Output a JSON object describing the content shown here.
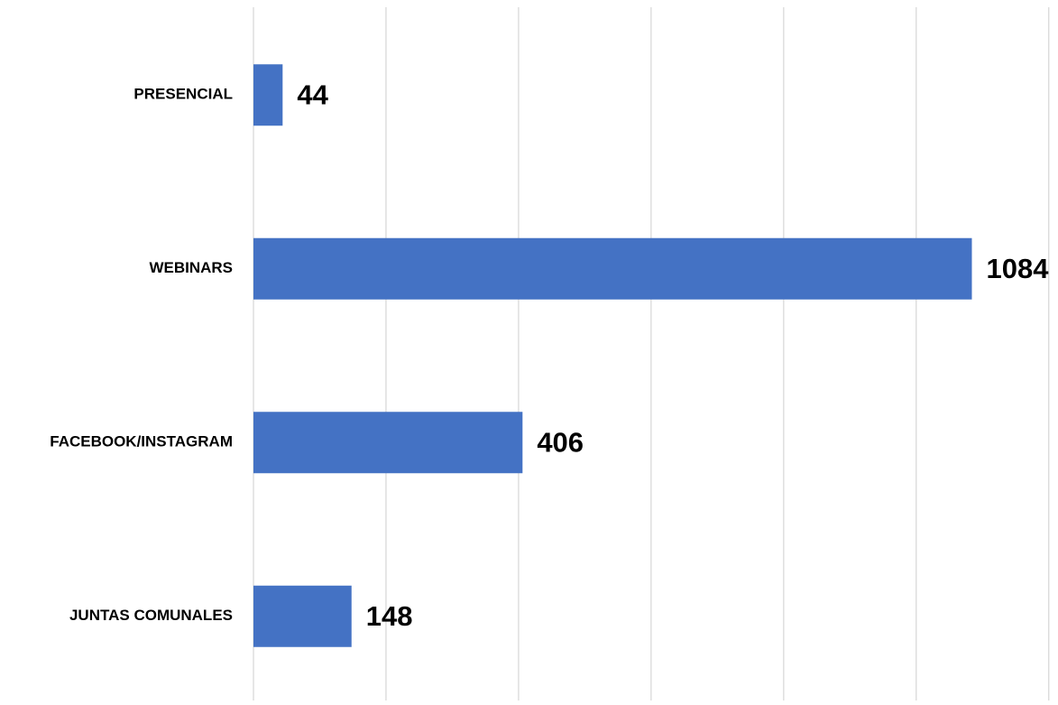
{
  "chart_data": {
    "type": "bar",
    "orientation": "horizontal",
    "title": "",
    "xlabel": "",
    "ylabel": "",
    "categories": [
      "PRESENCIAL",
      "WEBINARS",
      "FACEBOOK/INSTAGRAM",
      "JUNTAS COMUNALES"
    ],
    "values": [
      44,
      1084,
      406,
      148
    ],
    "data_labels": [
      "44",
      "1084",
      "406",
      "148"
    ],
    "xlim": [
      0,
      1200
    ],
    "grid": true,
    "legend": "none",
    "value_axis_labels_shown": false,
    "colors": {
      "bar": "#4472C4",
      "grid": "#D9D9D9",
      "text": "#000000"
    }
  }
}
